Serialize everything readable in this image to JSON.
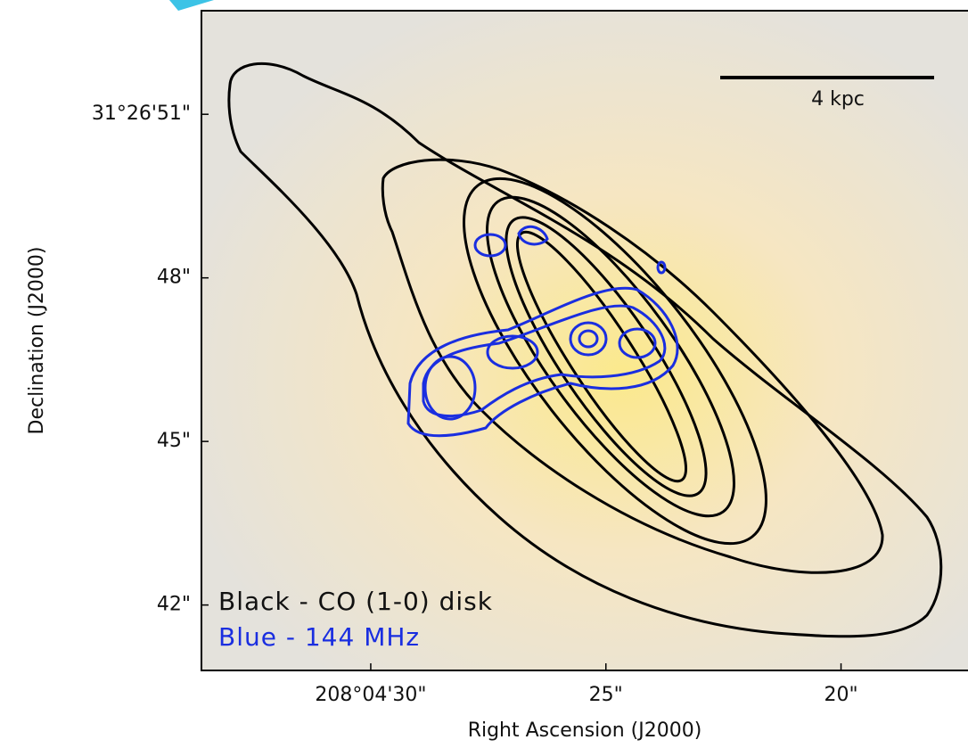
{
  "chart_data": {
    "type": "image",
    "xlabel": "Right Ascension (J2000)",
    "ylabel": "Declination (J2000)",
    "xlim": [
      33.6,
      17.3
    ],
    "ylim": [
      40.8,
      52.9
    ],
    "xticks": [
      {
        "value": 30,
        "label": "208°04'30\""
      },
      {
        "value": 25,
        "label": "25\""
      },
      {
        "value": 20,
        "label": "20\""
      }
    ],
    "yticks": [
      {
        "value": 51,
        "label": "31°26'51\""
      },
      {
        "value": 48,
        "label": "48\""
      },
      {
        "value": 45,
        "label": "45\""
      },
      {
        "value": 42,
        "label": "42\""
      }
    ],
    "scale_bar": "4 kpc",
    "legend": [
      {
        "name": "Black - CO (1-0) disk",
        "color": "#000000"
      },
      {
        "name": "Blue - 144 MHz",
        "color": "#1a2ee0"
      }
    ]
  }
}
